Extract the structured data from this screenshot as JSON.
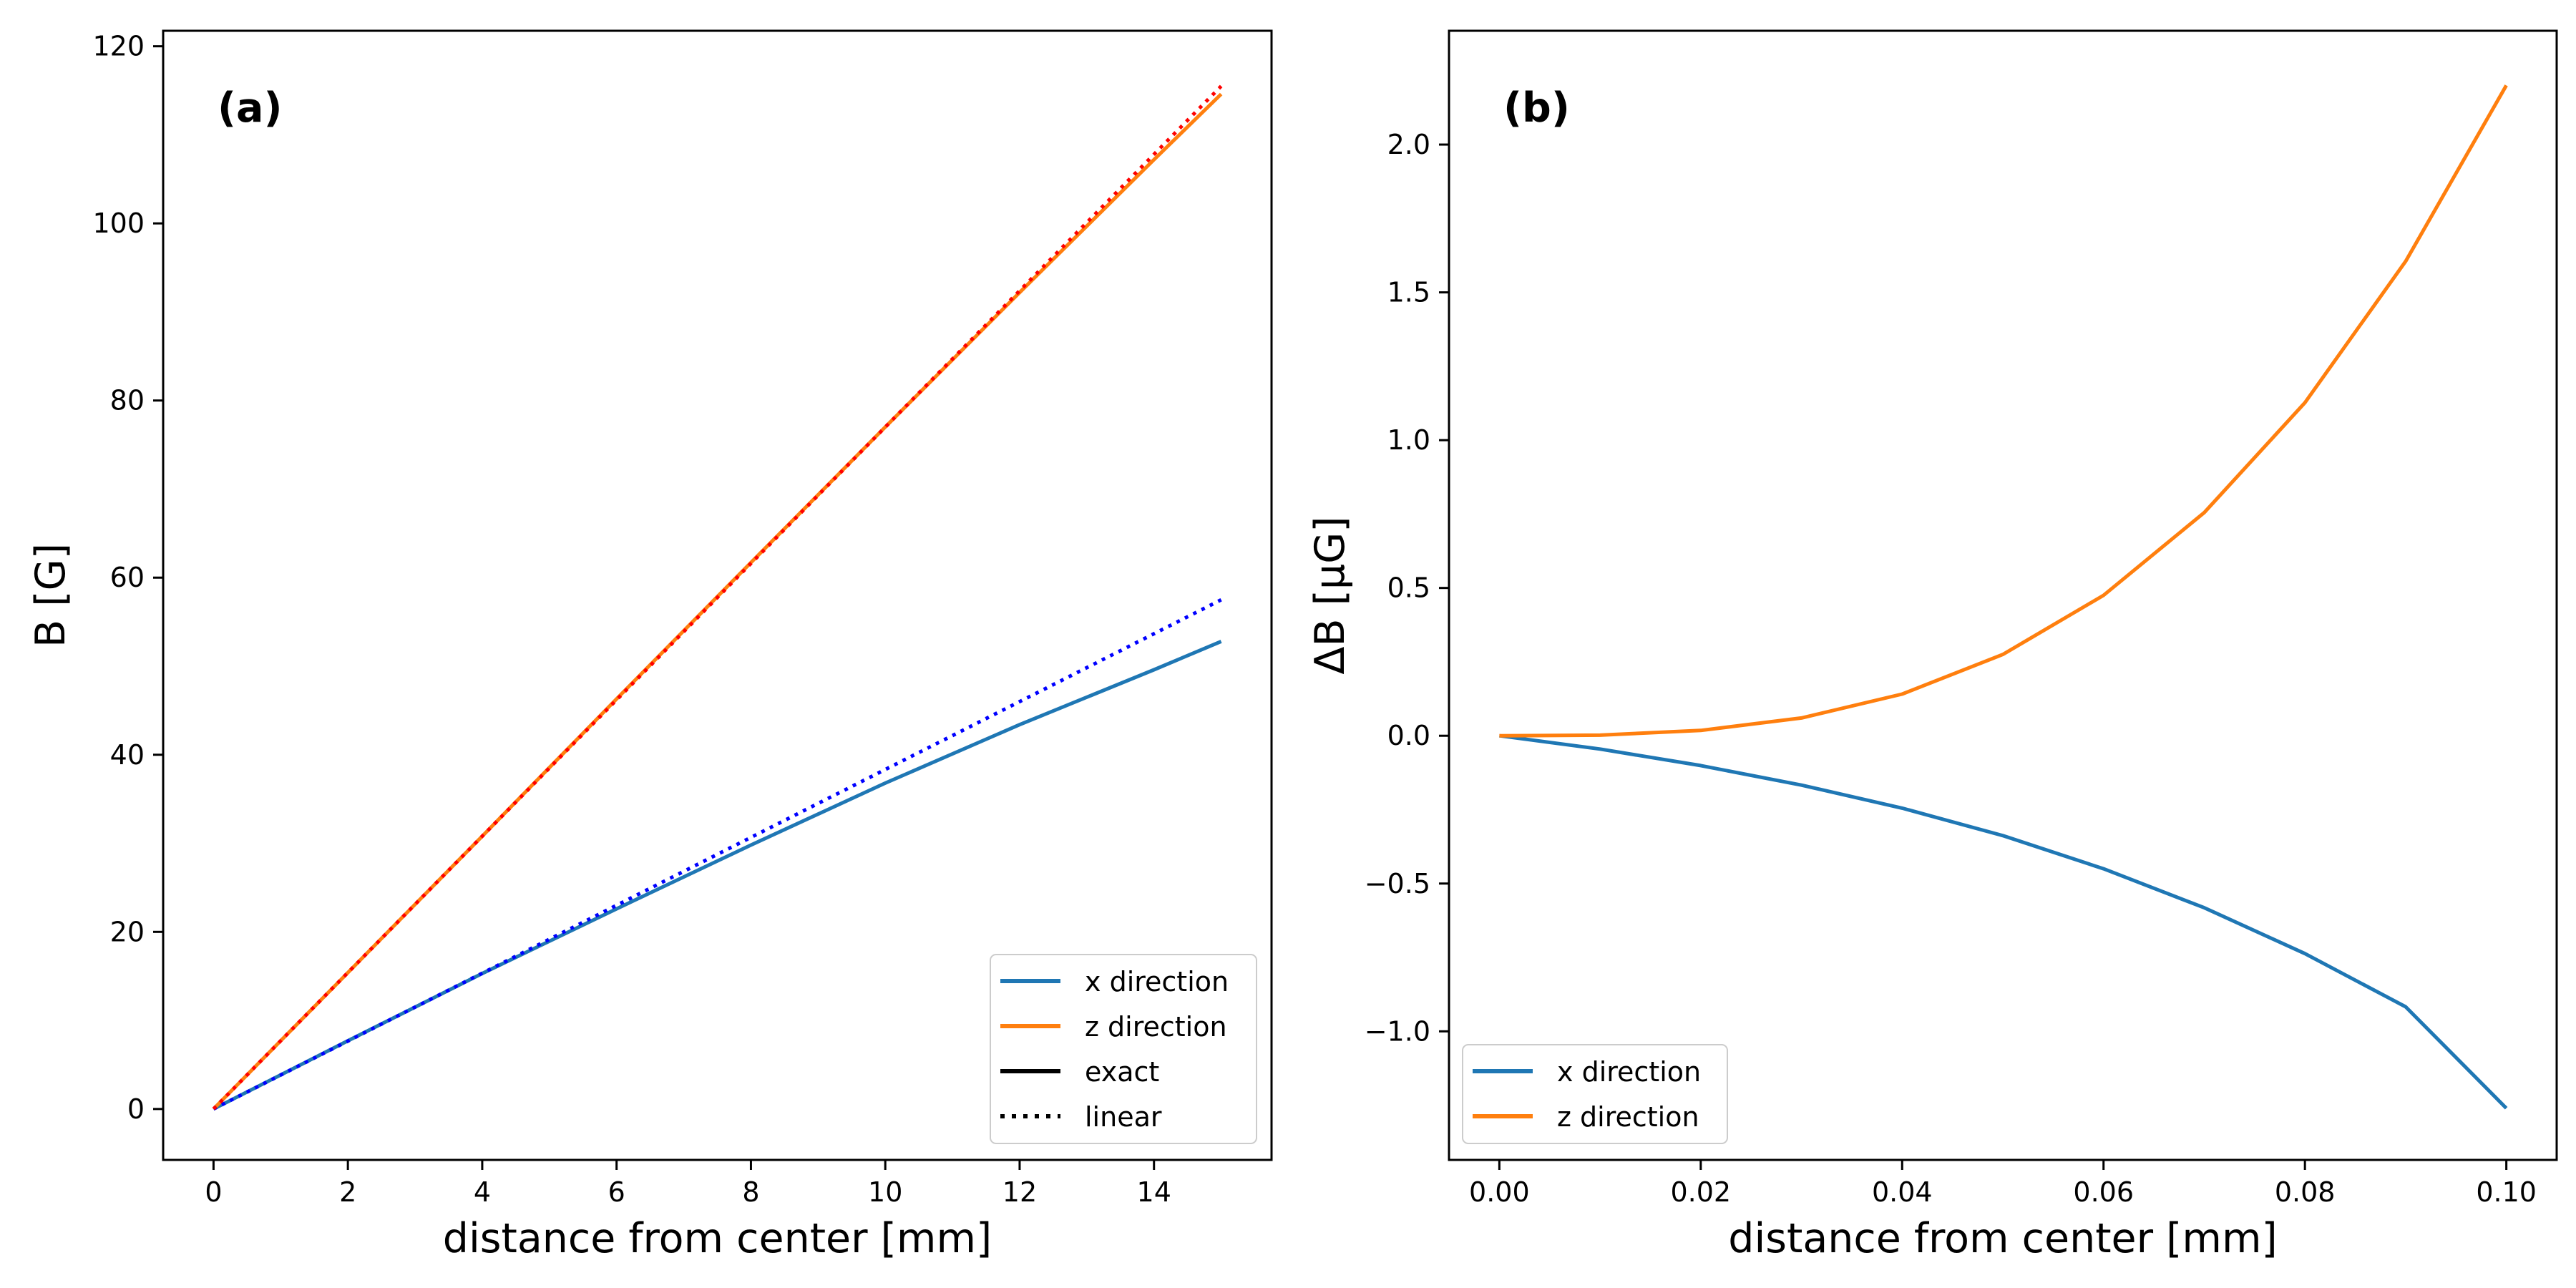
{
  "chart_data": [
    {
      "type": "line",
      "panel_label": "(a)",
      "xlabel": "distance from center [mm]",
      "ylabel": "B [G]",
      "xlim": [
        -0.75,
        15.75
      ],
      "ylim": [
        -5.75,
        121.75
      ],
      "xticks": [
        0,
        2,
        4,
        6,
        8,
        10,
        12,
        14
      ],
      "yticks": [
        0,
        20,
        40,
        60,
        80,
        100,
        120
      ],
      "legend": {
        "placement": "lower-right",
        "entries": [
          {
            "label": "x direction",
            "color": "#1f77b4",
            "style": "solid"
          },
          {
            "label": "z direction",
            "color": "#ff7f0e",
            "style": "solid"
          },
          {
            "label": "exact",
            "color": "#000000",
            "style": "solid"
          },
          {
            "label": "linear",
            "color": "#000000",
            "style": "dotted"
          }
        ]
      },
      "series": [
        {
          "name": "x direction (exact)",
          "color": "#1f77b4",
          "style": "solid",
          "x": [
            0,
            2,
            4,
            6,
            8,
            10,
            12,
            14,
            15
          ],
          "values": [
            0,
            7.7,
            15.3,
            22.6,
            29.8,
            36.8,
            43.4,
            49.6,
            52.8
          ]
        },
        {
          "name": "z direction (exact)",
          "color": "#ff7f0e",
          "style": "solid",
          "x": [
            0,
            2,
            4,
            6,
            8,
            10,
            12,
            14,
            15
          ],
          "values": [
            0,
            15.4,
            30.8,
            46.3,
            61.7,
            77.0,
            92.2,
            107.2,
            114.6
          ]
        },
        {
          "name": "x direction (linear)",
          "color": "#0000ff",
          "style": "dotted",
          "x": [
            0,
            15
          ],
          "values": [
            0,
            57.5
          ]
        },
        {
          "name": "z direction (linear)",
          "color": "#ff0000",
          "style": "dotted",
          "x": [
            0,
            15
          ],
          "values": [
            0,
            115.5
          ]
        }
      ]
    },
    {
      "type": "line",
      "panel_label": "(b)",
      "xlabel": "distance from center [mm]",
      "ylabel": "ΔB [µG]",
      "xlim": [
        -0.005,
        0.105
      ],
      "ylim": [
        -1.435,
        2.385
      ],
      "xticks": [
        0.0,
        0.02,
        0.04,
        0.06,
        0.08,
        0.1
      ],
      "xtick_labels": [
        "0.00",
        "0.02",
        "0.04",
        "0.06",
        "0.08",
        "0.10"
      ],
      "yticks": [
        -1.0,
        -0.5,
        0.0,
        0.5,
        1.0,
        1.5,
        2.0
      ],
      "ytick_labels": [
        "−1.0",
        "−0.5",
        "0.0",
        "0.5",
        "1.0",
        "1.5",
        "2.0"
      ],
      "legend": {
        "placement": "lower-left",
        "entries": [
          {
            "label": "x direction",
            "color": "#1f77b4",
            "style": "solid"
          },
          {
            "label": "z direction",
            "color": "#ff7f0e",
            "style": "solid"
          }
        ]
      },
      "series": [
        {
          "name": "x direction",
          "color": "#1f77b4",
          "style": "solid",
          "x": [
            0,
            0.01,
            0.02,
            0.03,
            0.04,
            0.05,
            0.06,
            0.07,
            0.08,
            0.09,
            0.1
          ],
          "values": [
            0,
            -0.045,
            -0.101,
            -0.167,
            -0.245,
            -0.338,
            -0.45,
            -0.582,
            -0.737,
            -0.917,
            -1.26
          ]
        },
        {
          "name": "z direction",
          "color": "#ff7f0e",
          "style": "solid",
          "x": [
            0,
            0.01,
            0.02,
            0.03,
            0.04,
            0.05,
            0.06,
            0.07,
            0.08,
            0.09,
            0.1
          ],
          "values": [
            0,
            0.002,
            0.018,
            0.06,
            0.141,
            0.275,
            0.475,
            0.755,
            1.127,
            1.605,
            2.2
          ]
        }
      ]
    }
  ]
}
